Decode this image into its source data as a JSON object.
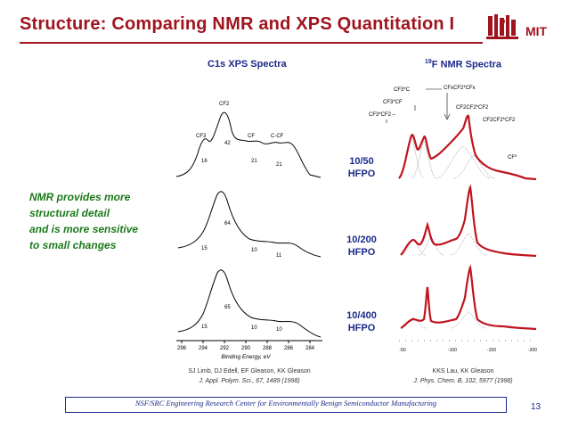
{
  "slide": {
    "title": "Structure: Comparing NMR and XPS Quantitation I",
    "logo_text": "MIT",
    "page_number": "13"
  },
  "headers": {
    "xps": "C1s XPS Spectra",
    "nmr_sup": "19",
    "nmr": "F NMR Spectra"
  },
  "callout": [
    "NMR provides more",
    "structural detail",
    "and is more sensitive",
    "to small changes"
  ],
  "rows": [
    {
      "line1": "10/50",
      "line2": "HFPO"
    },
    {
      "line1": "10/200",
      "line2": "HFPO"
    },
    {
      "line1": "10/400",
      "line2": "HFPO"
    }
  ],
  "xps": {
    "panel1": {
      "peaks": [
        "CF3",
        "CF2",
        "CF",
        "C-CF"
      ],
      "values": [
        "16",
        "42",
        "21",
        "21"
      ]
    },
    "panel2": {
      "values": [
        "64",
        "15",
        "10",
        "11"
      ]
    },
    "panel3": {
      "values": [
        "65",
        "15",
        "10",
        "10"
      ]
    },
    "axis_ticks": [
      "296",
      "294",
      "292",
      "290",
      "288",
      "286",
      "284"
    ],
    "axis_label": "Binding Energy, eV"
  },
  "nmr": {
    "labels": [
      "CF3*C",
      "CF3*CF",
      "CF3*CF2 –",
      "CFxCF2*CFx",
      "CF2CF2*CF2",
      "CF2CF2*CF2",
      "CF*"
    ],
    "axis_ticks": [
      "-50",
      "-100",
      "-150",
      "-200"
    ]
  },
  "citations": {
    "xps_authors": "SJ Limb, DJ Edell, EF Gleason, KK Gleason",
    "xps_journal": "J. Appl. Polym. Sci., 67, 1489 (1998)",
    "nmr_authors": "KKS Lau, KK Gleason",
    "nmr_journal": "J. Phys. Chem. B, 102, 5977 (1998)"
  },
  "footer": "NSF/SRC Engineering Research Center for Environmentally Benign Semiconductor Manufacturing",
  "colors": {
    "title": "#a0141e",
    "headers": "#1b2a8a",
    "callout": "#1a7a1a",
    "nmr_data": "#c0141e"
  }
}
